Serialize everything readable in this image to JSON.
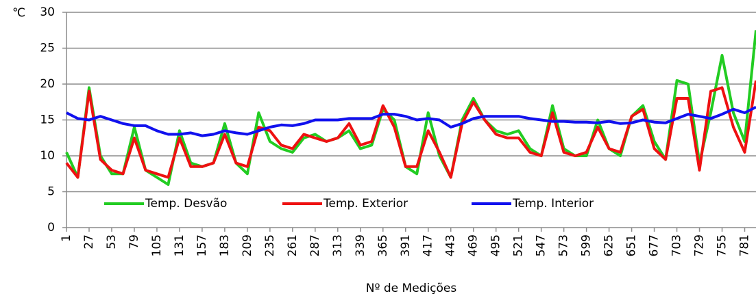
{
  "chart_data": {
    "type": "line",
    "y_label": "℃",
    "x_label": "Nº de Medições",
    "x": [
      1,
      14,
      27,
      40,
      53,
      66,
      79,
      92,
      105,
      118,
      131,
      144,
      157,
      170,
      183,
      196,
      209,
      222,
      235,
      248,
      261,
      274,
      287,
      300,
      313,
      326,
      339,
      352,
      365,
      378,
      391,
      404,
      417,
      430,
      443,
      456,
      469,
      482,
      495,
      508,
      521,
      534,
      547,
      560,
      573,
      586,
      599,
      612,
      625,
      638,
      651,
      664,
      677,
      690,
      703,
      716,
      729,
      742,
      755,
      768,
      781,
      794
    ],
    "series": [
      {
        "name": "Temp. Desvão",
        "color": "#22cc22",
        "values": [
          10.5,
          7,
          19.5,
          10,
          7.5,
          7.5,
          14,
          8,
          7,
          6,
          13.5,
          9,
          8.5,
          9,
          14.5,
          9,
          7.5,
          16,
          12,
          11,
          10.5,
          12.5,
          13,
          12,
          12.5,
          13.5,
          11,
          11.5,
          16.5,
          15,
          8.5,
          7.5,
          16,
          10,
          7,
          15,
          18,
          15,
          13.5,
          13,
          13.5,
          11,
          10,
          17,
          11,
          10,
          10,
          15,
          11,
          10,
          15.5,
          17,
          12,
          9.5,
          20.5,
          20,
          9,
          16,
          24,
          16,
          12,
          27.5
        ]
      },
      {
        "name": "Temp. Exterior",
        "color": "#ee1111",
        "values": [
          9,
          7,
          19,
          9.5,
          8,
          7.5,
          12.5,
          8,
          7.5,
          7,
          12.5,
          8.5,
          8.5,
          9,
          13,
          9,
          8.5,
          14,
          13.5,
          11.5,
          11,
          13,
          12.5,
          12,
          12.5,
          14.5,
          11.5,
          12,
          17,
          14,
          8.5,
          8.5,
          13.5,
          10.5,
          7,
          14.5,
          17.5,
          15,
          13,
          12.5,
          12.5,
          10.5,
          10,
          16,
          10.5,
          10,
          10.5,
          14,
          11,
          10.5,
          15.5,
          16.5,
          11,
          9.5,
          18,
          18,
          8,
          19,
          19.5,
          14,
          10.5,
          20.5
        ]
      },
      {
        "name": "Temp. Interior",
        "color": "#1111ee",
        "values": [
          16,
          15.2,
          15,
          15.5,
          15,
          14.5,
          14.2,
          14.2,
          13.5,
          13,
          13,
          13.2,
          12.8,
          13,
          13.5,
          13.2,
          13,
          13.5,
          14,
          14.3,
          14.2,
          14.5,
          15,
          15,
          15,
          15.2,
          15.2,
          15.2,
          15.8,
          15.8,
          15.5,
          15,
          15.2,
          15,
          14,
          14.5,
          15.2,
          15.5,
          15.5,
          15.5,
          15.5,
          15.2,
          15,
          14.8,
          14.8,
          14.7,
          14.7,
          14.6,
          14.8,
          14.5,
          14.6,
          15,
          14.7,
          14.6,
          15.2,
          15.8,
          15.5,
          15.2,
          15.8,
          16.5,
          16,
          16.8
        ]
      }
    ],
    "xlim": [
      1,
      794
    ],
    "xticks": [
      1,
      27,
      53,
      79,
      105,
      131,
      157,
      183,
      209,
      235,
      261,
      287,
      313,
      339,
      365,
      391,
      417,
      443,
      469,
      495,
      521,
      547,
      573,
      599,
      625,
      651,
      677,
      703,
      729,
      755,
      781
    ],
    "ylim": [
      0,
      30
    ],
    "yticks": [
      0,
      5,
      10,
      15,
      20,
      25,
      30
    ],
    "grid": true
  }
}
